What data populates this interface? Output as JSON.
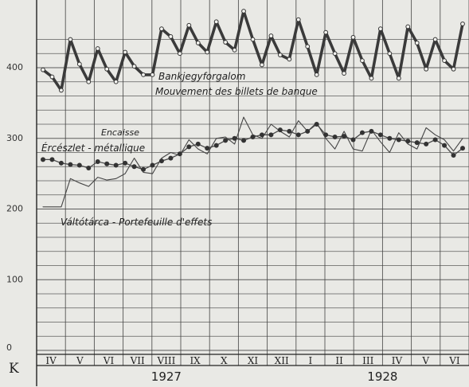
{
  "chart_data": {
    "type": "line",
    "unit_symbol": "K",
    "ylim": [
      0,
      440
    ],
    "yticks": [
      0,
      100,
      200,
      300,
      400
    ],
    "months": [
      "IV",
      "V",
      "VI",
      "VII",
      "VIII",
      "IX",
      "X",
      "XI",
      "XII",
      "I",
      "II",
      "III",
      "IV",
      "V",
      "VI"
    ],
    "years": [
      {
        "label": "1927",
        "first_month_index": 0,
        "last_month_index": 8
      },
      {
        "label": "1928",
        "first_month_index": 9,
        "last_month_index": 14
      }
    ],
    "series": [
      {
        "name": "Bankjegyforgalom",
        "name_fr": "Mouvement des billets de banque",
        "values": [
          397,
          387,
          368,
          440,
          405,
          380,
          427,
          398,
          380,
          422,
          402,
          390,
          390,
          455,
          444,
          420,
          460,
          435,
          422,
          465,
          436,
          425,
          480,
          440,
          404,
          445,
          418,
          412,
          468,
          430,
          390,
          450,
          420,
          392,
          443,
          410,
          385,
          455,
          420,
          385,
          458,
          435,
          398,
          440,
          410,
          398,
          462
        ]
      },
      {
        "name": "Ércészlet - métallique",
        "name_alt": "Encaisse",
        "values": [
          270,
          270,
          265,
          263,
          262,
          258,
          267,
          264,
          262,
          265,
          260,
          256,
          262,
          268,
          272,
          278,
          288,
          292,
          286,
          290,
          297,
          300,
          297,
          302,
          305,
          305,
          312,
          310,
          305,
          310,
          320,
          305,
          302,
          303,
          298,
          308,
          310,
          305,
          300,
          298,
          296,
          294,
          292,
          298,
          290,
          276,
          286
        ]
      },
      {
        "name": "Váltótárca - Portefeuille d'effets",
        "values": [
          203,
          203,
          203,
          243,
          237,
          232,
          245,
          241,
          243,
          250,
          272,
          252,
          250,
          272,
          280,
          276,
          298,
          285,
          278,
          300,
          302,
          292,
          330,
          305,
          300,
          320,
          310,
          302,
          325,
          310,
          322,
          300,
          285,
          310,
          285,
          282,
          312,
          295,
          280,
          308,
          292,
          285,
          315,
          305,
          298,
          282,
          300
        ]
      }
    ]
  }
}
